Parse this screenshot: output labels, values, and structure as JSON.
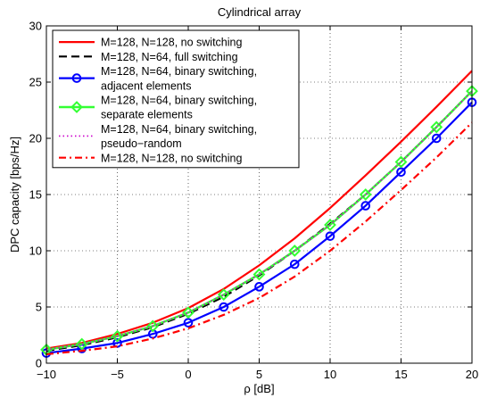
{
  "chart_data": {
    "type": "line",
    "title": "Cylindrical array",
    "xlabel": "ρ [dB]",
    "ylabel": "DPC capacity [bps/Hz]",
    "xlim": [
      -10,
      20
    ],
    "ylim": [
      0,
      30
    ],
    "xticks": [
      -10,
      -5,
      0,
      5,
      10,
      15,
      20
    ],
    "yticks": [
      0,
      5,
      10,
      15,
      20,
      25,
      30
    ],
    "xtick_labels": [
      "−10",
      "−5",
      "0",
      "5",
      "10",
      "15",
      "20"
    ],
    "ytick_labels": [
      "0",
      "5",
      "10",
      "15",
      "20",
      "25",
      "30"
    ],
    "grid": true,
    "legend_position": "top-left",
    "x": [
      -10,
      -7.5,
      -5,
      -2.5,
      0,
      2.5,
      5,
      7.5,
      10,
      12.5,
      15,
      17.5,
      20
    ],
    "series": [
      {
        "legend_lines": [
          "M=128, N=128, no switching"
        ],
        "color": "#ff0000",
        "dash": "solid",
        "width": 2.2,
        "marker": "none",
        "values": [
          1.3,
          1.8,
          2.6,
          3.6,
          4.9,
          6.6,
          8.7,
          11.1,
          13.8,
          16.7,
          19.7,
          22.8,
          26.0
        ]
      },
      {
        "legend_lines": [
          "M=128, N=64, full switching"
        ],
        "color": "#000000",
        "dash": "dashed",
        "width": 2.2,
        "marker": "none",
        "values": [
          1.1,
          1.6,
          2.3,
          3.2,
          4.4,
          5.9,
          7.8,
          10.0,
          12.4,
          15.0,
          17.9,
          21.0,
          24.2
        ]
      },
      {
        "legend_lines": [
          "M=128, N=64, binary switching,",
          "adjacent elements"
        ],
        "color": "#0000ff",
        "dash": "solid",
        "width": 2.2,
        "marker": "circle",
        "values": [
          0.9,
          1.3,
          1.8,
          2.6,
          3.6,
          5.0,
          6.8,
          8.8,
          11.3,
          14.0,
          17.0,
          20.0,
          23.2
        ]
      },
      {
        "legend_lines": [
          "M=128, N=64, binary switching,",
          "separate elements"
        ],
        "color": "#33ff33",
        "dash": "solid",
        "width": 2.4,
        "marker": "diamond",
        "values": [
          1.2,
          1.7,
          2.4,
          3.3,
          4.5,
          6.1,
          7.9,
          10.0,
          12.3,
          15.0,
          17.9,
          21.0,
          24.2
        ]
      },
      {
        "legend_lines": [
          "M=128, N=64, binary switching,",
          "pseudo−random"
        ],
        "color": "#cc00cc",
        "dash": "dotted",
        "width": 1.6,
        "marker": "none",
        "values": [
          1.2,
          1.7,
          2.4,
          3.3,
          4.5,
          6.1,
          7.9,
          10.0,
          12.3,
          15.0,
          17.9,
          21.0,
          24.2
        ]
      },
      {
        "legend_lines": [
          "M=128, N=128, no switching"
        ],
        "color": "#ff0000",
        "dash": "dashdot",
        "width": 2.2,
        "marker": "none",
        "values": [
          0.8,
          1.1,
          1.5,
          2.2,
          3.1,
          4.3,
          5.8,
          7.7,
          10.0,
          12.6,
          15.4,
          18.3,
          21.4
        ]
      }
    ]
  }
}
